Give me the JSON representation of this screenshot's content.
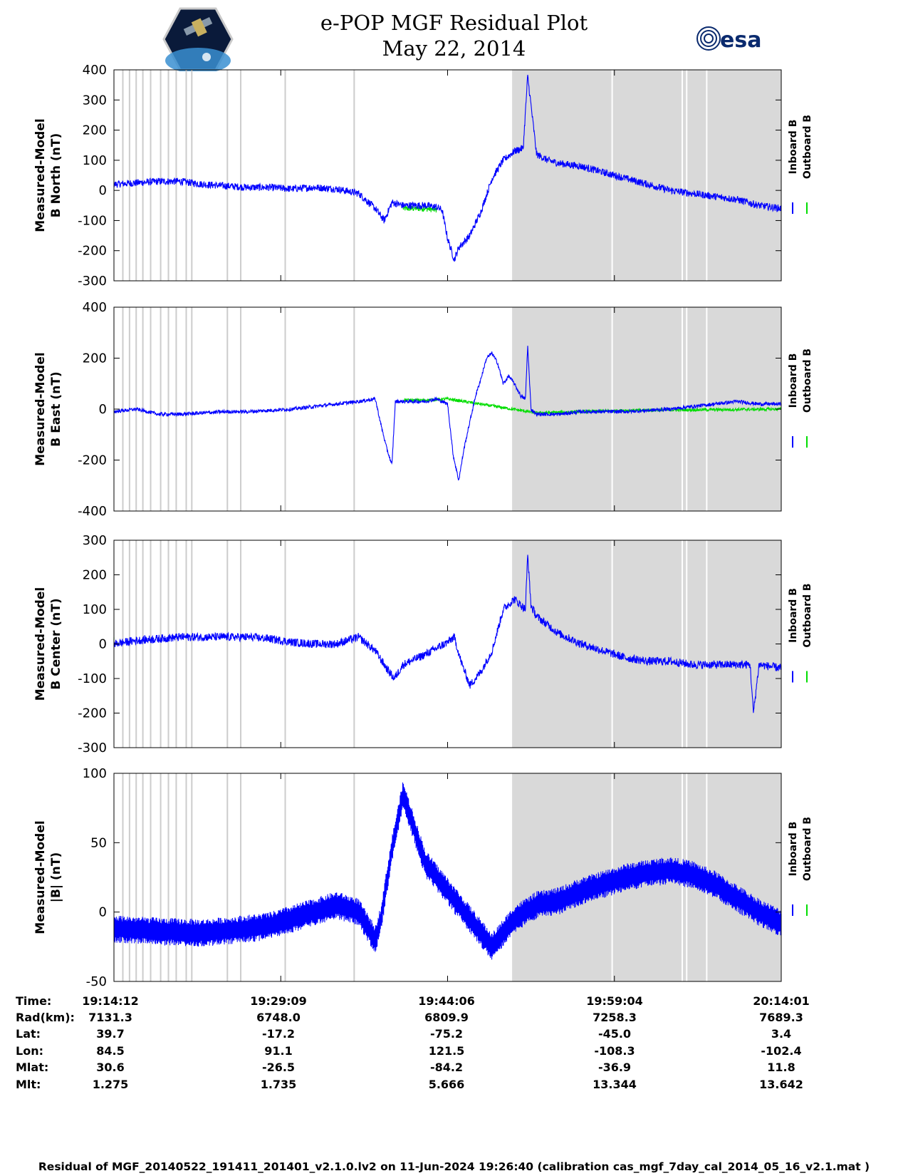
{
  "header": {
    "title_line1": "e-POP MGF Residual Plot",
    "title_line2": "May 22, 2014",
    "logo_left": "cassiope-satellite-logo",
    "logo_right_text": "esa"
  },
  "colors": {
    "inboard": "#0000ff",
    "outboard": "#00dd00",
    "shade": "#d9d9d9",
    "grid_line": "#cccccc"
  },
  "chart_data": [
    {
      "type": "line",
      "ylabel_line1": "Measured-Model",
      "ylabel_line2": "B North (nT)",
      "ylim": [
        -300,
        400
      ],
      "yticks": [
        "400",
        "300",
        "200",
        "100",
        "0",
        "-100",
        "-200",
        "-300"
      ],
      "yticks_values": [
        400,
        300,
        200,
        100,
        0,
        -100,
        -200,
        -300
      ],
      "legend": [
        "Inboard B",
        "Outboard B"
      ],
      "series": [
        {
          "name": "Inboard B",
          "x": [
            0,
            2,
            4,
            6,
            8,
            10,
            12,
            14,
            16,
            18,
            20,
            22,
            23.5,
            24.3,
            25,
            26,
            27,
            28,
            29,
            29.5,
            30,
            30.6,
            31,
            32,
            33,
            34,
            35,
            36,
            36.8,
            37.2,
            38,
            39,
            40,
            42,
            44,
            46,
            47,
            48,
            49,
            50,
            52,
            54,
            56,
            58,
            60
          ],
          "y": [
            20,
            25,
            30,
            30,
            20,
            15,
            10,
            10,
            5,
            10,
            5,
            -10,
            -60,
            -100,
            -40,
            -50,
            -50,
            -50,
            -55,
            -65,
            -160,
            -230,
            -190,
            -150,
            -70,
            40,
            100,
            130,
            140,
            380,
            120,
            100,
            90,
            80,
            60,
            40,
            30,
            20,
            10,
            0,
            -10,
            -20,
            -30,
            -50,
            -60
          ],
          "noise": 12
        },
        {
          "name": "Outboard B",
          "x": [
            26,
            27,
            28,
            29
          ],
          "y": [
            -60,
            -60,
            -60,
            -65
          ],
          "noise": 10
        }
      ]
    },
    {
      "type": "line",
      "ylabel_line1": "Measured-Model",
      "ylabel_line2": "B East (nT)",
      "ylim": [
        -400,
        400
      ],
      "yticks": [
        "400",
        "200",
        "0",
        "-200",
        "-400"
      ],
      "yticks_values": [
        400,
        200,
        0,
        -200,
        -400
      ],
      "legend": [
        "Inboard B",
        "Outboard B"
      ],
      "series": [
        {
          "name": "Inboard B",
          "x": [
            0,
            2,
            4,
            6,
            8,
            10,
            12,
            14,
            16,
            18,
            20,
            22,
            23.5,
            24,
            24.5,
            25,
            25.3,
            26,
            27,
            28,
            29,
            29.5,
            30,
            30.5,
            31,
            31.5,
            32,
            32.5,
            33,
            33.5,
            34,
            34.5,
            35,
            35.5,
            36,
            36.6,
            37,
            37.2,
            37.5,
            38,
            40,
            42,
            44,
            46,
            48,
            50,
            52,
            54,
            56,
            58,
            60
          ],
          "y": [
            -10,
            0,
            -20,
            -20,
            -15,
            -10,
            -10,
            -5,
            0,
            10,
            20,
            30,
            40,
            -60,
            -150,
            -220,
            30,
            30,
            30,
            30,
            40,
            30,
            20,
            -180,
            -280,
            -150,
            -50,
            50,
            120,
            200,
            220,
            180,
            100,
            130,
            100,
            50,
            40,
            250,
            0,
            -20,
            -20,
            -10,
            -10,
            -10,
            -5,
            0,
            10,
            20,
            30,
            20,
            20
          ],
          "noise": 7
        },
        {
          "name": "Outboard B",
          "x": [
            26,
            28,
            30,
            38,
            42,
            46,
            60
          ],
          "y": [
            35,
            35,
            40,
            -15,
            -10,
            -5,
            0
          ],
          "noise": 6
        }
      ]
    },
    {
      "type": "line",
      "ylabel_line1": "Measured-Model",
      "ylabel_line2": "B Center (nT)",
      "ylim": [
        -300,
        300
      ],
      "yticks": [
        "300",
        "200",
        "100",
        "0",
        "-100",
        "-200",
        "-300"
      ],
      "yticks_values": [
        300,
        200,
        100,
        0,
        -100,
        -200,
        -300
      ],
      "legend": [
        "Inboard B",
        "Outboard B"
      ],
      "series": [
        {
          "name": "Inboard B",
          "x": [
            0,
            2,
            4,
            6,
            8,
            10,
            12,
            14,
            16,
            18,
            20,
            22,
            23.5,
            24.5,
            25.2,
            26,
            28,
            30,
            30.6,
            31.2,
            32,
            33,
            34,
            35,
            36,
            37,
            37.2,
            37.5,
            38,
            40,
            42,
            44,
            46,
            48,
            50,
            52,
            54,
            56,
            57.2,
            57.5,
            58,
            60
          ],
          "y": [
            0,
            10,
            15,
            20,
            20,
            20,
            20,
            15,
            5,
            0,
            0,
            20,
            -20,
            -70,
            -100,
            -60,
            -30,
            5,
            20,
            -50,
            -120,
            -80,
            -20,
            100,
            130,
            100,
            260,
            110,
            80,
            30,
            0,
            -20,
            -40,
            -50,
            -50,
            -60,
            -60,
            -60,
            -60,
            -200,
            -60,
            -70
          ],
          "noise": 12
        },
        {
          "name": "Outboard B",
          "x": [
            0
          ],
          "y": [
            15
          ],
          "noise": 4
        }
      ]
    },
    {
      "type": "line",
      "ylabel_line1": "Measured-Model",
      "ylabel_line2": "|B| (nT)",
      "ylim": [
        -50,
        100
      ],
      "yticks": [
        "100",
        "50",
        "0",
        "-50"
      ],
      "yticks_values": [
        100,
        50,
        0,
        -50
      ],
      "legend": [
        "Inboard B",
        "Outboard B"
      ],
      "series": [
        {
          "name": "Inboard B",
          "x": [
            0,
            4,
            8,
            12,
            14,
            16,
            18,
            20,
            22,
            23.5,
            24,
            25,
            26,
            27,
            28,
            30,
            32,
            34,
            36,
            38,
            40,
            42,
            44,
            46,
            48,
            50,
            52,
            54,
            56,
            58,
            60
          ],
          "y": [
            -12,
            -14,
            -15,
            -12,
            -10,
            -5,
            0,
            5,
            0,
            -20,
            -5,
            45,
            85,
            60,
            35,
            15,
            -5,
            -25,
            -5,
            5,
            8,
            15,
            20,
            25,
            28,
            30,
            27,
            20,
            10,
            0,
            -8
          ],
          "band": 10
        },
        {
          "name": "Outboard B",
          "x": [
            0
          ],
          "y": [
            -12
          ],
          "band": 6
        }
      ]
    }
  ],
  "shade_regions": {
    "segments": [
      [
        35.8,
        60
      ]
    ],
    "gaps_in_main": [
      44.8,
      51.1,
      51.5,
      53.3
    ],
    "thin_lines": [
      0.8,
      1.4,
      2.0,
      2.6,
      3.3,
      4.2,
      4.9,
      5.6,
      6.5,
      7.0,
      10.2,
      11.4,
      15.4,
      21.6
    ]
  },
  "x_axis": {
    "range": [
      0,
      60
    ],
    "ticks": [
      15,
      30,
      45
    ]
  },
  "footer": {
    "rows": [
      {
        "label": "Time:",
        "values": [
          "19:14:12",
          "19:29:09",
          "19:44:06",
          "19:59:04",
          "20:14:01"
        ]
      },
      {
        "label": "Rad(km):",
        "values": [
          "7131.3",
          "6748.0",
          "6809.9",
          "7258.3",
          "7689.3"
        ]
      },
      {
        "label": "Lat:",
        "values": [
          "39.7",
          "-17.2",
          "-75.2",
          "-45.0",
          "3.4"
        ]
      },
      {
        "label": "Lon:",
        "values": [
          "84.5",
          "91.1",
          "121.5",
          "-108.3",
          "-102.4"
        ]
      },
      {
        "label": "Mlat:",
        "values": [
          "30.6",
          "-26.5",
          "-84.2",
          "-36.9",
          "11.8"
        ]
      },
      {
        "label": "Mlt:",
        "values": [
          "1.275",
          "1.735",
          "5.666",
          "13.344",
          "13.642"
        ]
      }
    ],
    "caption": "Residual of MGF_20140522_191411_201401_v2.1.0.lv2 on 11-Jun-2024 19:26:40 (calibration cas_mgf_7day_cal_2014_05_16_v2.1.mat )"
  }
}
